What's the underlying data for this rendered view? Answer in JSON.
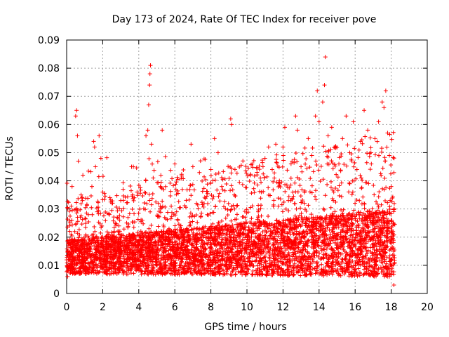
{
  "chart_data": {
    "type": "scatter",
    "title": "Day 173 of 2024, Rate Of TEC Index for receiver pove",
    "xlabel": "GPS time / hours",
    "ylabel": "ROTI / TECUs",
    "xlim": [
      0,
      20
    ],
    "ylim": [
      0,
      0.09
    ],
    "xticks": [
      "0",
      "2",
      "4",
      "6",
      "8",
      "10",
      "12",
      "14",
      "16",
      "18",
      "20"
    ],
    "yticks": [
      "0",
      "0.01",
      "0.02",
      "0.03",
      "0.04",
      "0.05",
      "0.06",
      "0.07",
      "0.08",
      "0.09"
    ],
    "grid": true,
    "marker": "plus",
    "color": "#ff0000",
    "data_extent_x": [
      0,
      18.2
    ],
    "series": [
      {
        "points": [
          [
            0.05,
            0.006
          ],
          [
            0.1,
            0.012
          ],
          [
            0.15,
            0.024
          ],
          [
            0.2,
            0.018
          ],
          [
            0.25,
            0.031
          ],
          [
            0.3,
            0.038
          ],
          [
            0.35,
            0.009
          ],
          [
            0.4,
            0.015
          ],
          [
            0.45,
            0.022
          ],
          [
            0.5,
            0.063
          ],
          [
            0.55,
            0.065
          ],
          [
            0.6,
            0.056
          ],
          [
            0.65,
            0.047
          ],
          [
            0.7,
            0.012
          ],
          [
            0.8,
            0.035
          ],
          [
            0.9,
            0.042
          ],
          [
            1.0,
            0.019
          ],
          [
            1.1,
            0.008
          ],
          [
            1.2,
            0.028
          ],
          [
            1.3,
            0.016
          ],
          [
            1.4,
            0.038
          ],
          [
            1.5,
            0.054
          ],
          [
            1.55,
            0.052
          ],
          [
            1.6,
            0.045
          ],
          [
            1.7,
            0.029
          ],
          [
            1.8,
            0.056
          ],
          [
            1.9,
            0.048
          ],
          [
            2.0,
            0.036
          ],
          [
            2.1,
            0.014
          ],
          [
            2.3,
            0.021
          ],
          [
            2.5,
            0.011
          ],
          [
            2.7,
            0.018
          ],
          [
            2.9,
            0.024
          ],
          [
            3.0,
            0.033
          ],
          [
            3.2,
            0.015
          ],
          [
            3.4,
            0.027
          ],
          [
            3.6,
            0.045
          ],
          [
            3.7,
            0.045
          ],
          [
            3.8,
            0.019
          ],
          [
            4.0,
            0.012
          ],
          [
            4.2,
            0.026
          ],
          [
            4.4,
            0.056
          ],
          [
            4.5,
            0.058
          ],
          [
            4.55,
            0.067
          ],
          [
            4.6,
            0.074
          ],
          [
            4.62,
            0.078
          ],
          [
            4.65,
            0.081
          ],
          [
            4.7,
            0.053
          ],
          [
            4.8,
            0.041
          ],
          [
            5.0,
            0.022
          ],
          [
            5.2,
            0.038
          ],
          [
            5.3,
            0.058
          ],
          [
            5.5,
            0.019
          ],
          [
            5.8,
            0.031
          ],
          [
            6.0,
            0.046
          ],
          [
            6.1,
            0.029
          ],
          [
            6.4,
            0.017
          ],
          [
            6.8,
            0.024
          ],
          [
            6.9,
            0.053
          ],
          [
            7.0,
            0.045
          ],
          [
            7.2,
            0.032
          ],
          [
            7.5,
            0.014
          ],
          [
            7.8,
            0.028
          ],
          [
            8.0,
            0.044
          ],
          [
            8.2,
            0.055
          ],
          [
            8.4,
            0.05
          ],
          [
            8.6,
            0.038
          ],
          [
            8.9,
            0.021
          ],
          [
            9.1,
            0.062
          ],
          [
            9.15,
            0.06
          ],
          [
            9.3,
            0.035
          ],
          [
            9.6,
            0.018
          ],
          [
            9.9,
            0.027
          ],
          [
            10.2,
            0.042
          ],
          [
            10.5,
            0.024
          ],
          [
            10.8,
            0.036
          ],
          [
            11.0,
            0.048
          ],
          [
            11.2,
            0.052
          ],
          [
            11.4,
            0.044
          ],
          [
            11.6,
            0.053
          ],
          [
            11.8,
            0.04
          ],
          [
            12.0,
            0.052
          ],
          [
            12.1,
            0.059
          ],
          [
            12.3,
            0.033
          ],
          [
            12.5,
            0.047
          ],
          [
            12.7,
            0.063
          ],
          [
            12.8,
            0.058
          ],
          [
            13.0,
            0.045
          ],
          [
            13.2,
            0.032
          ],
          [
            13.4,
            0.055
          ],
          [
            13.6,
            0.049
          ],
          [
            13.8,
            0.063
          ],
          [
            13.9,
            0.072
          ],
          [
            14.0,
            0.061
          ],
          [
            14.2,
            0.068
          ],
          [
            14.3,
            0.074
          ],
          [
            14.35,
            0.084
          ],
          [
            14.5,
            0.056
          ],
          [
            14.7,
            0.059
          ],
          [
            14.9,
            0.052
          ],
          [
            15.1,
            0.046
          ],
          [
            15.3,
            0.055
          ],
          [
            15.5,
            0.063
          ],
          [
            15.7,
            0.05
          ],
          [
            15.9,
            0.061
          ],
          [
            16.1,
            0.044
          ],
          [
            16.3,
            0.054
          ],
          [
            16.5,
            0.065
          ],
          [
            16.7,
            0.058
          ],
          [
            16.9,
            0.046
          ],
          [
            17.1,
            0.055
          ],
          [
            17.3,
            0.061
          ],
          [
            17.5,
            0.068
          ],
          [
            17.6,
            0.066
          ],
          [
            17.7,
            0.072
          ],
          [
            17.8,
            0.057
          ],
          [
            17.9,
            0.049
          ],
          [
            18.0,
            0.038
          ],
          [
            18.1,
            0.022
          ],
          [
            18.15,
            0.003
          ]
        ]
      }
    ]
  }
}
